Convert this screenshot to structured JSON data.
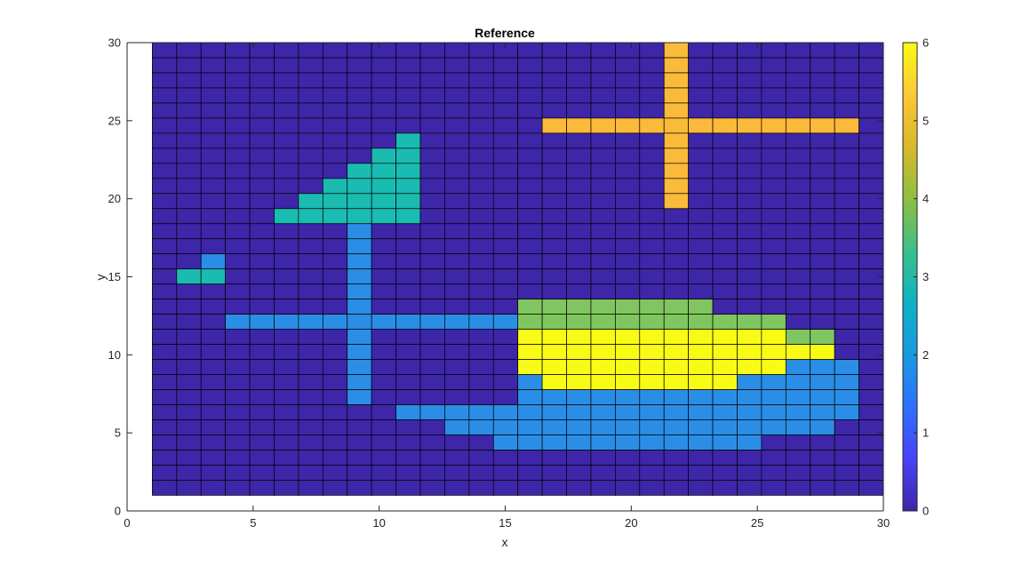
{
  "chart_data": {
    "type": "heatmap",
    "title": "Reference",
    "xlabel": "x",
    "ylabel": "y",
    "xlim": [
      0,
      30
    ],
    "ylim": [
      0,
      30
    ],
    "xticks": [
      0,
      5,
      10,
      15,
      20,
      25,
      30
    ],
    "yticks": [
      0,
      5,
      10,
      15,
      20,
      25,
      30
    ],
    "grid_x": [
      1,
      30
    ],
    "grid_y": [
      1,
      30
    ],
    "colormap": "parula",
    "clim": [
      0,
      6
    ],
    "colorbar_ticks": [
      0,
      1,
      2,
      3,
      4,
      5,
      6
    ],
    "cell_colors": {
      "0": "#3e26a8",
      "2": "#2b8ee6",
      "3": "#1abcb1",
      "4": "#80c660",
      "5": "#fbba3a",
      "6": "#f9fb15"
    },
    "edge_color": "#000000",
    "rows_top_to_bottom": [
      "000000000000000000000500000000",
      "000000000000000000000500000000",
      "000000000000000000000500000000",
      "000000000000000000000500000000",
      "000000000000000000000500000000",
      "000000000000000055555555555550",
      "000000000030000000000500000000",
      "000000000330000000000500000000",
      "000000003330000000000500000000",
      "000000033330000000000500000000",
      "000000333330000000000500000000",
      "000003333330000000000000000000",
      "000000002000000000000000000000",
      "000000002000000000000000000000",
      "002000002000000000000000000000",
      "033000002000000000000000000000",
      "000000002000000000000000000000",
      "000000002000000444444440000000",
      "000222222222222444444444440000",
      "000000002000000666666666664400",
      "000000002000000666666666666600",
      "000000002000000666666666662220",
      "000000002000000266666666222220",
      "000000002000000222222222222220",
      "000000000022222222222222222220",
      "000000000000222222222222222200",
      "000000000000002222222222200000",
      "000000000000000000000000000000",
      "000000000000000000000000000000",
      "000000000000000000000000000000"
    ]
  }
}
